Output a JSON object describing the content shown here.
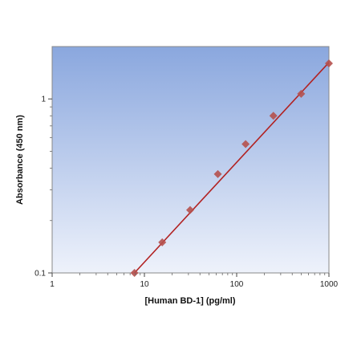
{
  "chart_data": {
    "type": "scatter",
    "xlabel": "[Human BD-1] (pg/ml)",
    "ylabel": "Absorbance (450 nm)",
    "xscale": "log",
    "yscale": "log",
    "xlim": [
      1,
      1000
    ],
    "ylim": [
      0.1,
      2
    ],
    "x_ticks": [
      {
        "value": 1,
        "label": "1"
      },
      {
        "value": 10,
        "label": "10"
      },
      {
        "value": 100,
        "label": "100"
      },
      {
        "value": 1000,
        "label": "1000"
      }
    ],
    "y_ticks": [
      {
        "value": 0.1,
        "label": "0.1"
      },
      {
        "value": 1,
        "label": "1"
      }
    ],
    "grid": false,
    "legend": "none",
    "series": [
      {
        "marker": "diamond",
        "color": "#b5504c",
        "points": [
          {
            "x": 7.8,
            "y": 0.1
          },
          {
            "x": 15.6,
            "y": 0.15
          },
          {
            "x": 31.3,
            "y": 0.23
          },
          {
            "x": 62.5,
            "y": 0.37
          },
          {
            "x": 125,
            "y": 0.55
          },
          {
            "x": 250,
            "y": 0.8
          },
          {
            "x": 500,
            "y": 1.07
          },
          {
            "x": 1000,
            "y": 1.6
          }
        ]
      }
    ],
    "fit_line": {
      "color": "#b22222",
      "points": [
        {
          "x": 7.8,
          "y": 0.1
        },
        {
          "x": 1000,
          "y": 1.62
        }
      ]
    },
    "plot_background": {
      "top": "#8aa7de",
      "bottom": "#eef2fb"
    }
  }
}
